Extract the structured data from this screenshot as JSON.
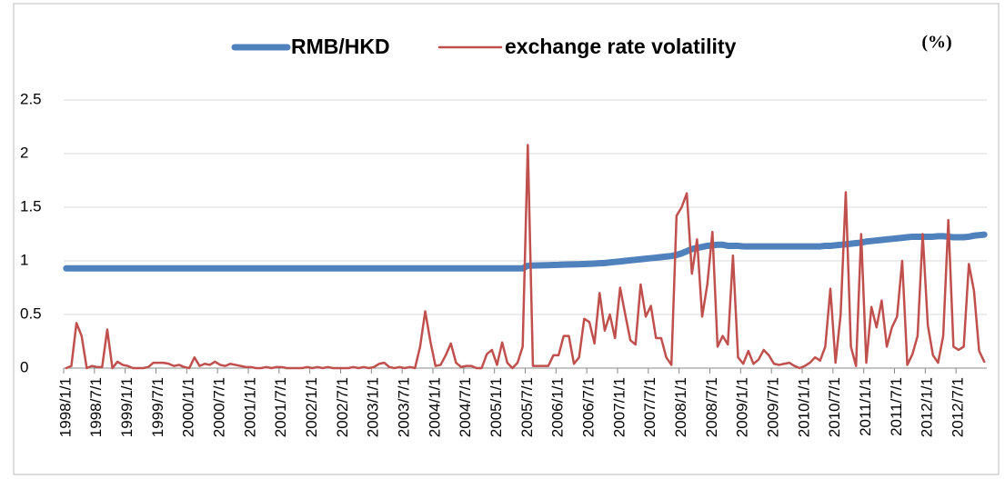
{
  "chart_data": {
    "type": "line",
    "unit_label": "(%)",
    "categories": [
      "1998/1/1",
      null,
      null,
      null,
      null,
      null,
      "1998/7/1",
      null,
      null,
      null,
      null,
      null,
      "1999/1/1",
      null,
      null,
      null,
      null,
      null,
      "1999/7/1",
      null,
      null,
      null,
      null,
      null,
      "2000/1/1",
      null,
      null,
      null,
      null,
      null,
      "2000/7/1",
      null,
      null,
      null,
      null,
      null,
      "2001/1/1",
      null,
      null,
      null,
      null,
      null,
      "2001/7/1",
      null,
      null,
      null,
      null,
      null,
      "2002/1/1",
      null,
      null,
      null,
      null,
      null,
      "2002/7/1",
      null,
      null,
      null,
      null,
      null,
      "2003/1/1",
      null,
      null,
      null,
      null,
      null,
      "2003/7/1",
      null,
      null,
      null,
      null,
      null,
      "2004/1/1",
      null,
      null,
      null,
      null,
      null,
      "2004/7/1",
      null,
      null,
      null,
      null,
      null,
      "2005/1/1",
      null,
      null,
      null,
      null,
      null,
      "2005/7/1",
      null,
      null,
      null,
      null,
      null,
      "2006/1/1",
      null,
      null,
      null,
      null,
      null,
      "2006/7/1",
      null,
      null,
      null,
      null,
      null,
      "2007/1/1",
      null,
      null,
      null,
      null,
      null,
      "2007/7/1",
      null,
      null,
      null,
      null,
      null,
      "2008/1/1",
      null,
      null,
      null,
      null,
      null,
      "2008/7/1",
      null,
      null,
      null,
      null,
      null,
      "2009/1/1",
      null,
      null,
      null,
      null,
      null,
      "2009/7/1",
      null,
      null,
      null,
      null,
      null,
      "2010/1/1",
      null,
      null,
      null,
      null,
      null,
      "2010/7/1",
      null,
      null,
      null,
      null,
      null,
      "2011/1/1",
      null,
      null,
      null,
      null,
      null,
      "2011/7/1",
      null,
      null,
      null,
      null,
      null,
      "2012/1/1",
      null,
      null,
      null,
      null,
      null,
      "2012/7/1",
      null,
      null,
      null,
      null,
      null
    ],
    "series": [
      {
        "name": "RMB/HKD",
        "color": "#4f81bd",
        "width": 7,
        "values": [
          0.93,
          0.93,
          0.93,
          0.93,
          0.93,
          0.93,
          0.93,
          0.93,
          0.93,
          0.93,
          0.93,
          0.93,
          0.93,
          0.93,
          0.93,
          0.93,
          0.93,
          0.93,
          0.93,
          0.93,
          0.93,
          0.93,
          0.93,
          0.93,
          0.93,
          0.93,
          0.93,
          0.93,
          0.93,
          0.93,
          0.93,
          0.93,
          0.93,
          0.93,
          0.93,
          0.93,
          0.93,
          0.93,
          0.93,
          0.93,
          0.93,
          0.93,
          0.93,
          0.93,
          0.93,
          0.93,
          0.93,
          0.93,
          0.93,
          0.93,
          0.93,
          0.93,
          0.93,
          0.93,
          0.93,
          0.93,
          0.93,
          0.93,
          0.93,
          0.93,
          0.93,
          0.93,
          0.93,
          0.93,
          0.93,
          0.93,
          0.93,
          0.93,
          0.93,
          0.93,
          0.93,
          0.93,
          0.93,
          0.93,
          0.93,
          0.93,
          0.93,
          0.93,
          0.93,
          0.93,
          0.93,
          0.93,
          0.93,
          0.93,
          0.93,
          0.93,
          0.93,
          0.93,
          0.93,
          0.93,
          0.955,
          0.957,
          0.958,
          0.959,
          0.96,
          0.962,
          0.963,
          0.965,
          0.966,
          0.967,
          0.968,
          0.97,
          0.972,
          0.975,
          0.978,
          0.98,
          0.985,
          0.99,
          0.995,
          1,
          1.005,
          1.01,
          1.015,
          1.02,
          1.025,
          1.03,
          1.035,
          1.04,
          1.045,
          1.055,
          1.07,
          1.09,
          1.11,
          1.12,
          1.13,
          1.14,
          1.145,
          1.15,
          1.15,
          1.14,
          1.14,
          1.14,
          1.135,
          1.135,
          1.135,
          1.135,
          1.135,
          1.135,
          1.135,
          1.135,
          1.135,
          1.135,
          1.135,
          1.135,
          1.135,
          1.135,
          1.135,
          1.135,
          1.14,
          1.14,
          1.145,
          1.15,
          1.155,
          1.16,
          1.165,
          1.17,
          1.18,
          1.185,
          1.19,
          1.195,
          1.2,
          1.205,
          1.21,
          1.215,
          1.22,
          1.225,
          1.225,
          1.225,
          1.225,
          1.225,
          1.23,
          1.23,
          1.225,
          1.22,
          1.22,
          1.22,
          1.225,
          1.235,
          1.24,
          1.245
        ]
      },
      {
        "name": "exchange rate volatility",
        "color": "#c0504d",
        "width": 2.5,
        "values": [
          0,
          0.02,
          0.42,
          0.3,
          0,
          0.02,
          0.01,
          0.01,
          0.36,
          0,
          0.06,
          0.03,
          0.02,
          0,
          0,
          0,
          0.01,
          0.05,
          0.05,
          0.05,
          0.04,
          0.02,
          0.03,
          0.01,
          0,
          0.1,
          0.02,
          0.04,
          0.03,
          0.06,
          0.03,
          0.02,
          0.04,
          0.03,
          0.02,
          0.01,
          0.01,
          0,
          0,
          0.01,
          0,
          0.01,
          0.01,
          0,
          0,
          0,
          0,
          0.01,
          0,
          0.01,
          0,
          0.01,
          0,
          0,
          0,
          0,
          0.01,
          0,
          0.01,
          0,
          0.01,
          0.04,
          0.05,
          0.01,
          0,
          0.01,
          0,
          0.01,
          0,
          0.2,
          0.53,
          0.25,
          0.02,
          0.03,
          0.12,
          0.23,
          0.05,
          0.01,
          0.02,
          0.02,
          0,
          0,
          0.13,
          0.17,
          0.03,
          0.24,
          0.05,
          0,
          0.05,
          0.2,
          2.08,
          0.02,
          0.02,
          0.02,
          0.02,
          0.12,
          0.12,
          0.3,
          0.3,
          0.04,
          0.1,
          0.46,
          0.43,
          0.23,
          0.7,
          0.35,
          0.5,
          0.28,
          0.75,
          0.5,
          0.26,
          0.22,
          0.78,
          0.48,
          0.58,
          0.28,
          0.28,
          0.1,
          0.03,
          1.42,
          1.5,
          1.63,
          0.88,
          1.2,
          0.48,
          0.78,
          1.27,
          0.2,
          0.3,
          0.22,
          1.05,
          0.1,
          0.04,
          0.16,
          0.04,
          0.08,
          0.17,
          0.12,
          0.04,
          0.03,
          0.04,
          0.05,
          0.02,
          0,
          0.02,
          0.05,
          0.1,
          0.07,
          0.2,
          0.74,
          0.05,
          0.5,
          1.64,
          0.2,
          0.02,
          1.25,
          0.05,
          0.57,
          0.38,
          0.63,
          0.2,
          0.38,
          0.48,
          1.0,
          0.03,
          0.13,
          0.3,
          1.25,
          0.4,
          0.12,
          0.05,
          0.3,
          1.38,
          0.2,
          0.17,
          0.2,
          0.97,
          0.72,
          0.16,
          0.06
        ]
      }
    ],
    "ylim": [
      0,
      2.5
    ],
    "yticks": [
      0,
      0.5,
      1,
      1.5,
      2,
      2.5
    ],
    "grid": true,
    "legend": "top"
  }
}
